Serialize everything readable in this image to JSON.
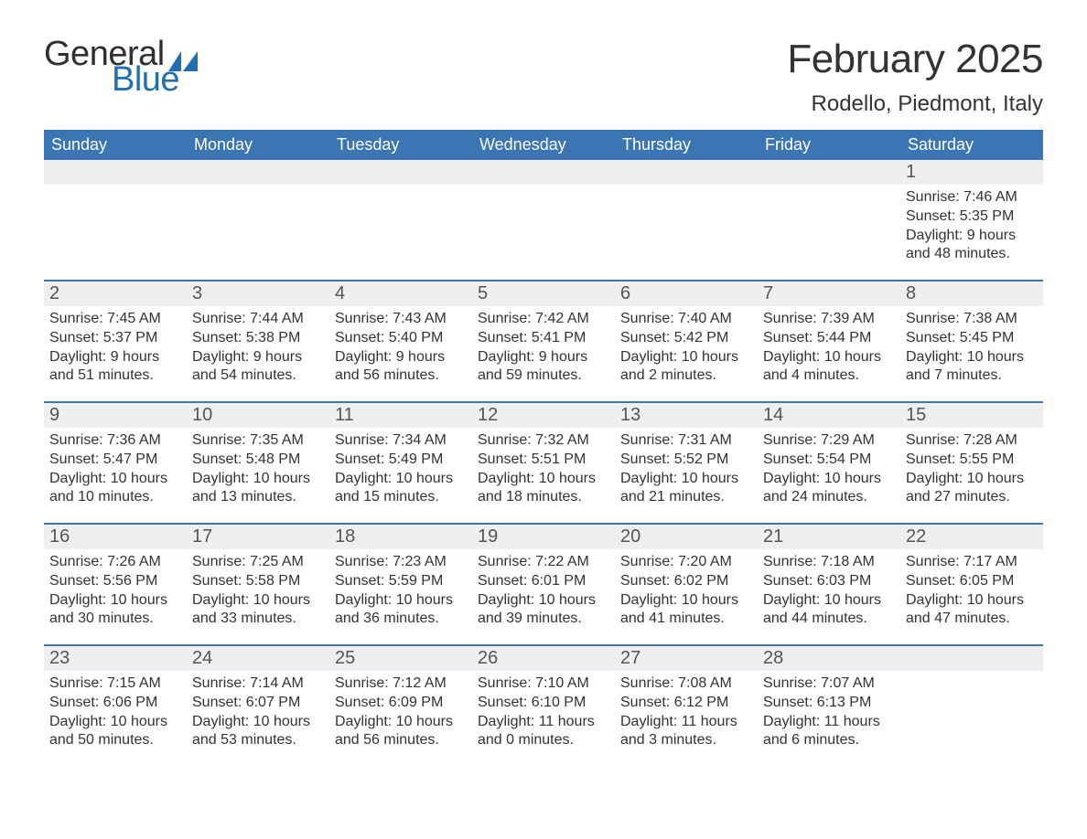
{
  "brand": {
    "word1": "General",
    "word2": "Blue"
  },
  "colors": {
    "brand_blue": "#3b75b3",
    "logo_dark": "#2f2f2f",
    "logo_blue": "#1f6fb1",
    "daynum_bg": "#efefef",
    "text": "#333333",
    "white": "#ffffff"
  },
  "header": {
    "month_title": "February 2025",
    "location": "Rodello, Piedmont, Italy"
  },
  "days_of_week": [
    "Sunday",
    "Monday",
    "Tuesday",
    "Wednesday",
    "Thursday",
    "Friday",
    "Saturday"
  ],
  "weeks": [
    {
      "cells": [
        {
          "empty": true
        },
        {
          "empty": true
        },
        {
          "empty": true
        },
        {
          "empty": true
        },
        {
          "empty": true
        },
        {
          "empty": true
        },
        {
          "num": "1",
          "sunrise": "Sunrise: 7:46 AM",
          "sunset": "Sunset: 5:35 PM",
          "day1": "Daylight: 9 hours",
          "day2": "and 48 minutes."
        }
      ]
    },
    {
      "cells": [
        {
          "num": "2",
          "sunrise": "Sunrise: 7:45 AM",
          "sunset": "Sunset: 5:37 PM",
          "day1": "Daylight: 9 hours",
          "day2": "and 51 minutes."
        },
        {
          "num": "3",
          "sunrise": "Sunrise: 7:44 AM",
          "sunset": "Sunset: 5:38 PM",
          "day1": "Daylight: 9 hours",
          "day2": "and 54 minutes."
        },
        {
          "num": "4",
          "sunrise": "Sunrise: 7:43 AM",
          "sunset": "Sunset: 5:40 PM",
          "day1": "Daylight: 9 hours",
          "day2": "and 56 minutes."
        },
        {
          "num": "5",
          "sunrise": "Sunrise: 7:42 AM",
          "sunset": "Sunset: 5:41 PM",
          "day1": "Daylight: 9 hours",
          "day2": "and 59 minutes."
        },
        {
          "num": "6",
          "sunrise": "Sunrise: 7:40 AM",
          "sunset": "Sunset: 5:42 PM",
          "day1": "Daylight: 10 hours",
          "day2": "and 2 minutes."
        },
        {
          "num": "7",
          "sunrise": "Sunrise: 7:39 AM",
          "sunset": "Sunset: 5:44 PM",
          "day1": "Daylight: 10 hours",
          "day2": "and 4 minutes."
        },
        {
          "num": "8",
          "sunrise": "Sunrise: 7:38 AM",
          "sunset": "Sunset: 5:45 PM",
          "day1": "Daylight: 10 hours",
          "day2": "and 7 minutes."
        }
      ]
    },
    {
      "cells": [
        {
          "num": "9",
          "sunrise": "Sunrise: 7:36 AM",
          "sunset": "Sunset: 5:47 PM",
          "day1": "Daylight: 10 hours",
          "day2": "and 10 minutes."
        },
        {
          "num": "10",
          "sunrise": "Sunrise: 7:35 AM",
          "sunset": "Sunset: 5:48 PM",
          "day1": "Daylight: 10 hours",
          "day2": "and 13 minutes."
        },
        {
          "num": "11",
          "sunrise": "Sunrise: 7:34 AM",
          "sunset": "Sunset: 5:49 PM",
          "day1": "Daylight: 10 hours",
          "day2": "and 15 minutes."
        },
        {
          "num": "12",
          "sunrise": "Sunrise: 7:32 AM",
          "sunset": "Sunset: 5:51 PM",
          "day1": "Daylight: 10 hours",
          "day2": "and 18 minutes."
        },
        {
          "num": "13",
          "sunrise": "Sunrise: 7:31 AM",
          "sunset": "Sunset: 5:52 PM",
          "day1": "Daylight: 10 hours",
          "day2": "and 21 minutes."
        },
        {
          "num": "14",
          "sunrise": "Sunrise: 7:29 AM",
          "sunset": "Sunset: 5:54 PM",
          "day1": "Daylight: 10 hours",
          "day2": "and 24 minutes."
        },
        {
          "num": "15",
          "sunrise": "Sunrise: 7:28 AM",
          "sunset": "Sunset: 5:55 PM",
          "day1": "Daylight: 10 hours",
          "day2": "and 27 minutes."
        }
      ]
    },
    {
      "cells": [
        {
          "num": "16",
          "sunrise": "Sunrise: 7:26 AM",
          "sunset": "Sunset: 5:56 PM",
          "day1": "Daylight: 10 hours",
          "day2": "and 30 minutes."
        },
        {
          "num": "17",
          "sunrise": "Sunrise: 7:25 AM",
          "sunset": "Sunset: 5:58 PM",
          "day1": "Daylight: 10 hours",
          "day2": "and 33 minutes."
        },
        {
          "num": "18",
          "sunrise": "Sunrise: 7:23 AM",
          "sunset": "Sunset: 5:59 PM",
          "day1": "Daylight: 10 hours",
          "day2": "and 36 minutes."
        },
        {
          "num": "19",
          "sunrise": "Sunrise: 7:22 AM",
          "sunset": "Sunset: 6:01 PM",
          "day1": "Daylight: 10 hours",
          "day2": "and 39 minutes."
        },
        {
          "num": "20",
          "sunrise": "Sunrise: 7:20 AM",
          "sunset": "Sunset: 6:02 PM",
          "day1": "Daylight: 10 hours",
          "day2": "and 41 minutes."
        },
        {
          "num": "21",
          "sunrise": "Sunrise: 7:18 AM",
          "sunset": "Sunset: 6:03 PM",
          "day1": "Daylight: 10 hours",
          "day2": "and 44 minutes."
        },
        {
          "num": "22",
          "sunrise": "Sunrise: 7:17 AM",
          "sunset": "Sunset: 6:05 PM",
          "day1": "Daylight: 10 hours",
          "day2": "and 47 minutes."
        }
      ]
    },
    {
      "cells": [
        {
          "num": "23",
          "sunrise": "Sunrise: 7:15 AM",
          "sunset": "Sunset: 6:06 PM",
          "day1": "Daylight: 10 hours",
          "day2": "and 50 minutes."
        },
        {
          "num": "24",
          "sunrise": "Sunrise: 7:14 AM",
          "sunset": "Sunset: 6:07 PM",
          "day1": "Daylight: 10 hours",
          "day2": "and 53 minutes."
        },
        {
          "num": "25",
          "sunrise": "Sunrise: 7:12 AM",
          "sunset": "Sunset: 6:09 PM",
          "day1": "Daylight: 10 hours",
          "day2": "and 56 minutes."
        },
        {
          "num": "26",
          "sunrise": "Sunrise: 7:10 AM",
          "sunset": "Sunset: 6:10 PM",
          "day1": "Daylight: 11 hours",
          "day2": "and 0 minutes."
        },
        {
          "num": "27",
          "sunrise": "Sunrise: 7:08 AM",
          "sunset": "Sunset: 6:12 PM",
          "day1": "Daylight: 11 hours",
          "day2": "and 3 minutes."
        },
        {
          "num": "28",
          "sunrise": "Sunrise: 7:07 AM",
          "sunset": "Sunset: 6:13 PM",
          "day1": "Daylight: 11 hours",
          "day2": "and 6 minutes."
        },
        {
          "empty": true
        }
      ]
    }
  ]
}
